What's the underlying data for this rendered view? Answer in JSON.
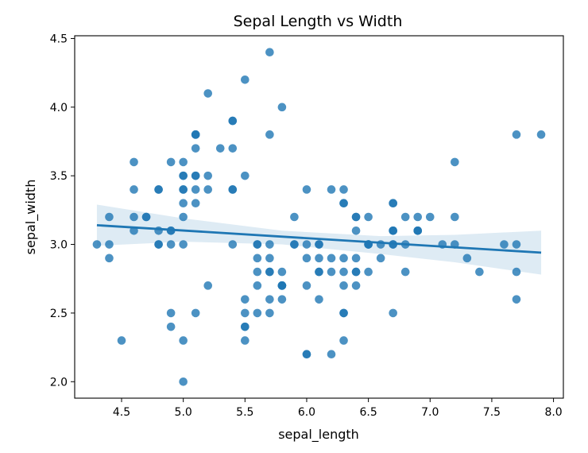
{
  "colors": {
    "point": "#1f77b4",
    "line": "#1f77b4",
    "band": "#1f77b4"
  },
  "chart_data": {
    "type": "scatter",
    "title": "Sepal Length vs Width",
    "xlabel": "sepal_length",
    "ylabel": "sepal_width",
    "xlim": [
      4.12,
      8.08
    ],
    "ylim": [
      1.88,
      4.52
    ],
    "xticks": [
      4.5,
      5.0,
      5.5,
      6.0,
      6.5,
      7.0,
      7.5,
      8.0
    ],
    "xtick_labels": [
      "4.5",
      "5.0",
      "5.5",
      "6.0",
      "6.5",
      "7.0",
      "7.5",
      "8.0"
    ],
    "yticks": [
      2.0,
      2.5,
      3.0,
      3.5,
      4.0,
      4.5
    ],
    "ytick_labels": [
      "2.0",
      "2.5",
      "3.0",
      "3.5",
      "4.0",
      "4.5"
    ],
    "grid": false,
    "legend": "none",
    "regression": {
      "x": [
        4.3,
        7.9
      ],
      "y": [
        3.14,
        2.94
      ],
      "ci": [
        {
          "x": 4.3,
          "lower": 2.99,
          "upper": 3.29
        },
        {
          "x": 5.0,
          "lower": 3.02,
          "upper": 3.19
        },
        {
          "x": 5.8,
          "lower": 3.0,
          "upper": 3.1
        },
        {
          "x": 6.6,
          "lower": 2.93,
          "upper": 3.06
        },
        {
          "x": 7.2,
          "lower": 2.87,
          "upper": 3.07
        },
        {
          "x": 7.9,
          "lower": 2.78,
          "upper": 3.1
        }
      ]
    },
    "points": [
      [
        5.1,
        3.5
      ],
      [
        4.9,
        3.0
      ],
      [
        4.7,
        3.2
      ],
      [
        4.6,
        3.1
      ],
      [
        5.0,
        3.6
      ],
      [
        5.4,
        3.9
      ],
      [
        4.6,
        3.4
      ],
      [
        5.0,
        3.4
      ],
      [
        4.4,
        2.9
      ],
      [
        4.9,
        3.1
      ],
      [
        5.4,
        3.7
      ],
      [
        4.8,
        3.4
      ],
      [
        4.8,
        3.0
      ],
      [
        4.3,
        3.0
      ],
      [
        5.8,
        4.0
      ],
      [
        5.7,
        4.4
      ],
      [
        5.4,
        3.9
      ],
      [
        5.1,
        3.5
      ],
      [
        5.7,
        3.8
      ],
      [
        5.1,
        3.8
      ],
      [
        5.4,
        3.4
      ],
      [
        5.1,
        3.7
      ],
      [
        4.6,
        3.6
      ],
      [
        5.1,
        3.3
      ],
      [
        4.8,
        3.4
      ],
      [
        5.0,
        3.0
      ],
      [
        5.0,
        3.4
      ],
      [
        5.2,
        3.5
      ],
      [
        5.2,
        3.4
      ],
      [
        4.7,
        3.2
      ],
      [
        4.8,
        3.1
      ],
      [
        5.4,
        3.4
      ],
      [
        5.2,
        4.1
      ],
      [
        5.5,
        4.2
      ],
      [
        4.9,
        3.1
      ],
      [
        5.0,
        3.2
      ],
      [
        5.5,
        3.5
      ],
      [
        4.9,
        3.6
      ],
      [
        4.4,
        3.0
      ],
      [
        5.1,
        3.4
      ],
      [
        5.0,
        3.5
      ],
      [
        4.5,
        2.3
      ],
      [
        4.4,
        3.2
      ],
      [
        5.0,
        3.5
      ],
      [
        5.1,
        3.8
      ],
      [
        4.8,
        3.0
      ],
      [
        5.1,
        3.8
      ],
      [
        4.6,
        3.2
      ],
      [
        5.3,
        3.7
      ],
      [
        5.0,
        3.3
      ],
      [
        7.0,
        3.2
      ],
      [
        6.4,
        3.2
      ],
      [
        6.9,
        3.1
      ],
      [
        5.5,
        2.3
      ],
      [
        6.5,
        2.8
      ],
      [
        5.7,
        2.8
      ],
      [
        6.3,
        3.3
      ],
      [
        4.9,
        2.4
      ],
      [
        6.6,
        2.9
      ],
      [
        5.2,
        2.7
      ],
      [
        5.0,
        2.0
      ],
      [
        5.9,
        3.0
      ],
      [
        6.0,
        2.2
      ],
      [
        6.1,
        2.9
      ],
      [
        5.6,
        2.9
      ],
      [
        6.7,
        3.1
      ],
      [
        5.6,
        3.0
      ],
      [
        5.8,
        2.7
      ],
      [
        6.2,
        2.2
      ],
      [
        5.6,
        2.5
      ],
      [
        5.9,
        3.2
      ],
      [
        6.1,
        2.8
      ],
      [
        6.3,
        2.5
      ],
      [
        6.1,
        2.8
      ],
      [
        6.4,
        2.9
      ],
      [
        6.6,
        3.0
      ],
      [
        6.8,
        2.8
      ],
      [
        6.7,
        3.0
      ],
      [
        6.0,
        2.9
      ],
      [
        5.7,
        2.6
      ],
      [
        5.5,
        2.4
      ],
      [
        5.5,
        2.4
      ],
      [
        5.8,
        2.7
      ],
      [
        6.0,
        2.7
      ],
      [
        5.4,
        3.0
      ],
      [
        6.0,
        3.4
      ],
      [
        6.7,
        3.1
      ],
      [
        6.3,
        2.3
      ],
      [
        5.6,
        3.0
      ],
      [
        5.5,
        2.5
      ],
      [
        5.5,
        2.6
      ],
      [
        6.1,
        3.0
      ],
      [
        5.8,
        2.6
      ],
      [
        5.0,
        2.3
      ],
      [
        5.6,
        2.7
      ],
      [
        5.7,
        3.0
      ],
      [
        5.7,
        2.9
      ],
      [
        6.2,
        2.9
      ],
      [
        5.1,
        2.5
      ],
      [
        5.7,
        2.8
      ],
      [
        6.3,
        3.3
      ],
      [
        5.8,
        2.7
      ],
      [
        7.1,
        3.0
      ],
      [
        6.3,
        2.9
      ],
      [
        6.5,
        3.0
      ],
      [
        7.6,
        3.0
      ],
      [
        4.9,
        2.5
      ],
      [
        7.3,
        2.9
      ],
      [
        6.7,
        2.5
      ],
      [
        7.2,
        3.6
      ],
      [
        6.5,
        3.2
      ],
      [
        6.4,
        2.7
      ],
      [
        6.8,
        3.0
      ],
      [
        5.7,
        2.5
      ],
      [
        5.8,
        2.8
      ],
      [
        6.4,
        3.2
      ],
      [
        6.5,
        3.0
      ],
      [
        7.7,
        3.8
      ],
      [
        7.7,
        2.6
      ],
      [
        6.0,
        2.2
      ],
      [
        6.9,
        3.2
      ],
      [
        5.6,
        2.8
      ],
      [
        7.7,
        2.8
      ],
      [
        6.3,
        2.7
      ],
      [
        6.7,
        3.3
      ],
      [
        7.2,
        3.2
      ],
      [
        6.2,
        2.8
      ],
      [
        6.1,
        3.0
      ],
      [
        6.4,
        2.8
      ],
      [
        7.2,
        3.0
      ],
      [
        7.4,
        2.8
      ],
      [
        7.9,
        3.8
      ],
      [
        6.4,
        2.8
      ],
      [
        6.3,
        2.8
      ],
      [
        6.1,
        2.6
      ],
      [
        7.7,
        3.0
      ],
      [
        6.3,
        3.4
      ],
      [
        6.4,
        3.1
      ],
      [
        6.0,
        3.0
      ],
      [
        6.9,
        3.1
      ],
      [
        6.7,
        3.1
      ],
      [
        6.9,
        3.1
      ],
      [
        5.8,
        2.7
      ],
      [
        6.8,
        3.2
      ],
      [
        6.7,
        3.3
      ],
      [
        6.7,
        3.0
      ],
      [
        6.3,
        2.5
      ],
      [
        6.5,
        3.0
      ],
      [
        6.2,
        3.4
      ],
      [
        5.9,
        3.0
      ]
    ]
  }
}
